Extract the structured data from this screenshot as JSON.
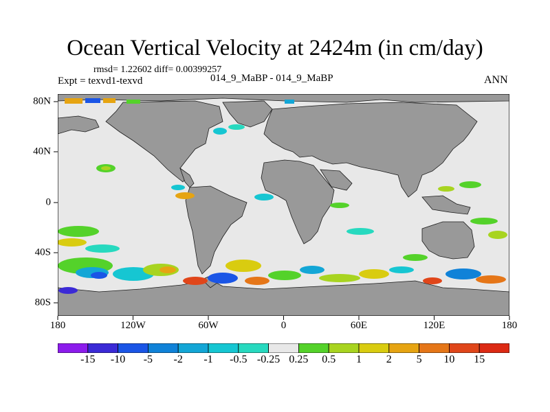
{
  "title": "Ocean Vertical Velocity at 2424m (in cm/day)",
  "stats": "rmsd= 1.22602 diff= 0.00399257",
  "experiment": "Expt = texvd1-texvd",
  "center_label": "014_9_MaBP - 014_9_MaBP",
  "season": "ANN",
  "lon_labels": [
    "180",
    "120W",
    "60W",
    "0",
    "60E",
    "120E",
    "180"
  ],
  "lat_labels": [
    "80N",
    "40N",
    "0",
    "40S",
    "80S"
  ],
  "colorbar": {
    "levels": [
      "-15",
      "-10",
      "-5",
      "-2",
      "-1",
      "-0.5",
      "-0.25",
      "0.25",
      "0.5",
      "1",
      "2",
      "5",
      "10",
      "15"
    ],
    "colors": [
      "#8c1cec",
      "#3b2ad6",
      "#1a55e6",
      "#1082d8",
      "#13a6d6",
      "#16c6d2",
      "#27d9bf",
      "#e8e8e8",
      "#54d22a",
      "#a8d420",
      "#d9cc10",
      "#e6a412",
      "#e57618",
      "#e0461a",
      "#dc2a14"
    ]
  },
  "colors": {
    "land": "#999999",
    "ocean_near_zero": "#e8e8e8",
    "coastline": "#1a1a1a"
  }
}
